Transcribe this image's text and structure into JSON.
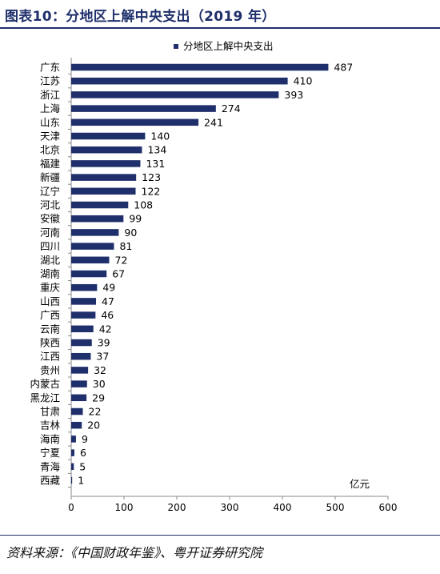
{
  "header": {
    "title": "图表10：分地区上解中央支出（2019 年）"
  },
  "footer": {
    "source": "资料来源：《中国财政年鉴》、粤开证券研究院"
  },
  "colors": {
    "bar": "#1f2f6b",
    "title": "#1f2f6b"
  },
  "chart_data": {
    "type": "bar",
    "orientation": "horizontal",
    "categories": [
      "广东",
      "江苏",
      "浙江",
      "上海",
      "山东",
      "天津",
      "北京",
      "福建",
      "新疆",
      "辽宁",
      "河北",
      "安徽",
      "河南",
      "四川",
      "湖北",
      "湖南",
      "重庆",
      "山西",
      "广西",
      "云南",
      "陕西",
      "江西",
      "贵州",
      "内蒙古",
      "黑龙江",
      "甘肃",
      "吉林",
      "海南",
      "宁夏",
      "青海",
      "西藏"
    ],
    "series": [
      {
        "name": "分地区上解中央支出",
        "values": [
          487,
          410,
          393,
          274,
          241,
          140,
          134,
          131,
          123,
          122,
          108,
          99,
          90,
          81,
          72,
          67,
          49,
          47,
          46,
          42,
          39,
          37,
          32,
          30,
          29,
          22,
          20,
          9,
          6,
          5,
          1
        ]
      }
    ],
    "unit": "亿元",
    "xlim": [
      0,
      600
    ],
    "xticks": [
      0,
      100,
      200,
      300,
      400,
      500,
      600
    ],
    "legend_position": "top-center",
    "grid": false
  }
}
